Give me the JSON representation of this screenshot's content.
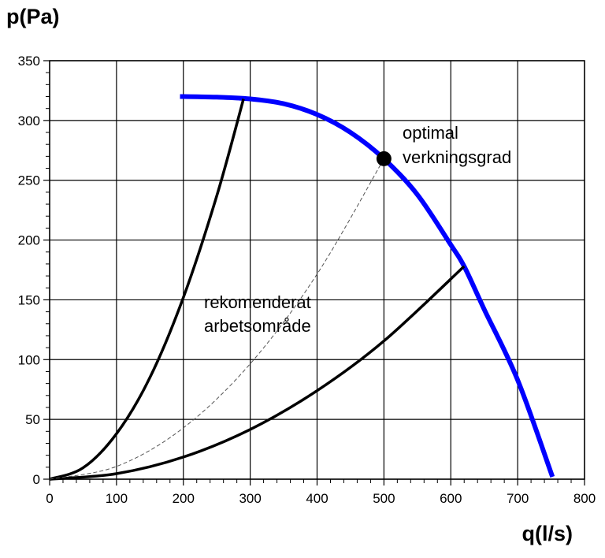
{
  "chart_data": {
    "type": "line",
    "xlabel": "q(l/s)",
    "ylabel": "p(Pa)",
    "xlim": [
      0,
      800
    ],
    "ylim": [
      0,
      350
    ],
    "x_ticks": [
      0,
      100,
      200,
      300,
      400,
      500,
      600,
      700,
      800
    ],
    "y_ticks": [
      0,
      50,
      100,
      150,
      200,
      250,
      300,
      350
    ],
    "grid": true,
    "series": [
      {
        "color": "#0000ff",
        "style": "solid-thick",
        "x": [
          195,
          250,
          300,
          350,
          400,
          450,
          500,
          550,
          600,
          620,
          650,
          700,
          752
        ],
        "y": [
          320,
          319.5,
          318,
          314,
          305,
          290,
          268,
          238,
          196,
          178,
          142,
          83,
          2
        ]
      },
      {
        "color": "#000000",
        "style": "solid",
        "x": [
          0,
          50,
          100,
          150,
          200,
          250,
          290
        ],
        "y": [
          0,
          9.5,
          38,
          85,
          152,
          237,
          318
        ]
      },
      {
        "color": "#000000",
        "style": "solid",
        "x": [
          0,
          100,
          200,
          300,
          400,
          500,
          620
        ],
        "y": [
          0,
          4.6,
          18.5,
          41.6,
          74,
          115.6,
          178
        ]
      },
      {
        "color": "#555555",
        "style": "dashed-thin",
        "x": [
          0,
          100,
          200,
          300,
          400,
          500
        ],
        "y": [
          0,
          10.7,
          42.9,
          96.5,
          171.5,
          268
        ]
      }
    ],
    "markers": [
      {
        "x": 500,
        "y": 268,
        "color": "#000000"
      }
    ],
    "annotations": [
      {
        "lines": [
          "optimal",
          "verkningsgrad"
        ]
      },
      {
        "lines": [
          "rekomenderat",
          "arbetsområde"
        ]
      }
    ]
  }
}
